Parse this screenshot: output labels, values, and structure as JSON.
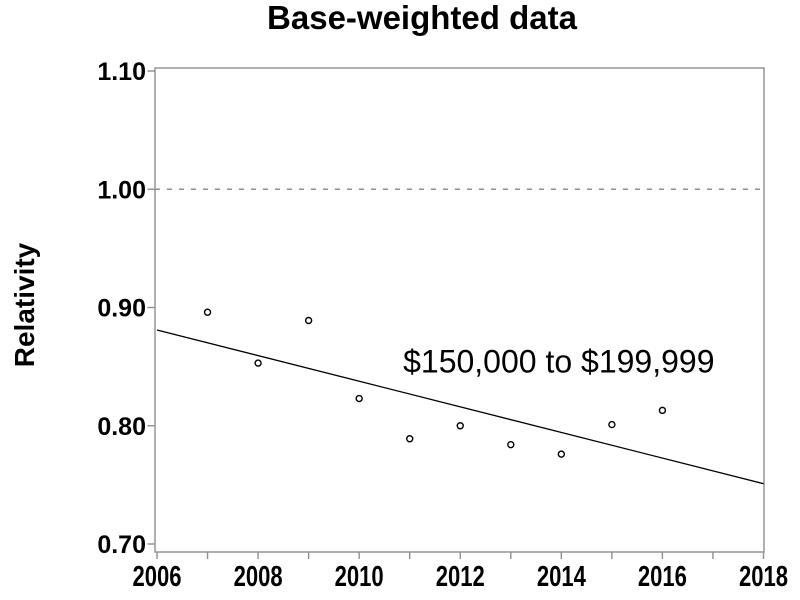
{
  "figure": {
    "title": "Base-weighted data",
    "background": "#ffffff"
  },
  "chart_data": {
    "type": "scatter",
    "title": "Base-weighted data",
    "xlabel": "",
    "ylabel": "Relativity",
    "xlim": [
      2006,
      2018
    ],
    "ylim": [
      0.7,
      1.1
    ],
    "grid": false,
    "legend": false,
    "x_axis": {
      "ticks": [
        2006,
        2007,
        2008,
        2009,
        2010,
        2011,
        2012,
        2013,
        2014,
        2015,
        2016,
        2017,
        2018
      ],
      "labeled_ticks": [
        {
          "value": 2006,
          "label": "2006"
        },
        {
          "value": 2008,
          "label": "2008"
        },
        {
          "value": 2010,
          "label": "2010"
        },
        {
          "value": 2012,
          "label": "2012"
        },
        {
          "value": 2014,
          "label": "2014"
        },
        {
          "value": 2016,
          "label": "2016"
        },
        {
          "value": 2018,
          "label": "2018"
        }
      ]
    },
    "y_axis": {
      "ticks": [
        {
          "value": 0.7,
          "label": "0.70"
        },
        {
          "value": 0.8,
          "label": "0.80"
        },
        {
          "value": 0.9,
          "label": "0.90"
        },
        {
          "value": 1.0,
          "label": "1.00"
        },
        {
          "value": 1.1,
          "label": "1.10"
        }
      ]
    },
    "reference_line": {
      "y": 1.0,
      "style": "dashed"
    },
    "series": [
      {
        "name": "observed-relativity",
        "type": "scatter",
        "marker": "open-circle",
        "points": [
          {
            "x": 2007,
            "y": 0.896
          },
          {
            "x": 2008,
            "y": 0.853
          },
          {
            "x": 2009,
            "y": 0.889
          },
          {
            "x": 2010,
            "y": 0.823
          },
          {
            "x": 2011,
            "y": 0.789
          },
          {
            "x": 2012,
            "y": 0.8
          },
          {
            "x": 2013,
            "y": 0.784
          },
          {
            "x": 2014,
            "y": 0.776
          },
          {
            "x": 2015,
            "y": 0.801
          },
          {
            "x": 2016,
            "y": 0.813
          }
        ]
      },
      {
        "name": "linear-trend",
        "type": "line",
        "points": [
          {
            "x": 2006,
            "y": 0.881
          },
          {
            "x": 2018,
            "y": 0.751
          }
        ]
      }
    ],
    "annotation": {
      "text": "$150,000 to $199,999",
      "x": 2013.95,
      "y": 0.845
    }
  },
  "style": {
    "axis_color": "#8f8f8f",
    "reference_line_color": "#8f8f8f",
    "marker_color": "#000000",
    "marker_fill": "#ffffff",
    "trend_color": "#000000",
    "text_color": "#000000",
    "background": "#ffffff"
  }
}
